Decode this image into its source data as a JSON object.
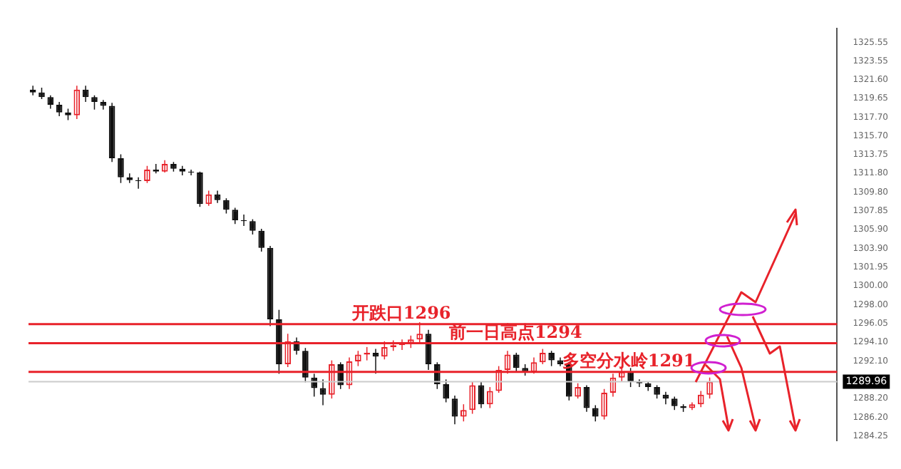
{
  "chart_data": {
    "type": "candlestick",
    "categories": [
      null,
      null,
      null,
      null,
      null,
      null,
      null,
      null,
      null,
      null,
      null,
      null,
      null,
      null,
      null,
      null,
      null,
      null,
      null,
      null,
      null,
      null,
      null,
      null,
      null,
      null,
      null,
      null,
      null,
      null,
      null,
      null,
      null,
      null,
      null,
      null,
      null,
      null,
      null,
      null,
      null,
      null,
      null,
      null,
      null,
      null,
      null,
      null,
      null,
      null,
      null,
      null,
      null,
      null,
      null,
      null,
      null,
      null,
      null,
      null,
      null,
      null,
      null,
      null,
      null,
      null,
      null,
      null,
      null,
      null,
      null,
      null,
      null,
      null,
      null,
      null,
      null,
      null,
      null,
      null,
      null,
      null,
      null,
      null,
      null,
      null,
      null,
      null,
      null,
      null,
      null,
      null
    ],
    "ohlc": [
      [
        1320.6,
        1321,
        1320,
        1320.3
      ],
      [
        1320.3,
        1320.8,
        1319.6,
        1319.8
      ],
      [
        1319.8,
        1320,
        1318.6,
        1319.0
      ],
      [
        1319.0,
        1319.3,
        1317.8,
        1318.2
      ],
      [
        1318.2,
        1318.6,
        1317.4,
        1317.9
      ],
      [
        1317.9,
        1321.0,
        1317.5,
        1320.6
      ],
      [
        1320.6,
        1321,
        1319.3,
        1319.8
      ],
      [
        1319.8,
        1320,
        1318.5,
        1319.3
      ],
      [
        1319.3,
        1319.5,
        1318.5,
        1318.9
      ],
      [
        1318.9,
        1319.2,
        1313.0,
        1313.4
      ],
      [
        1313.4,
        1313.8,
        1310.8,
        1311.4
      ],
      [
        1311.4,
        1311.8,
        1310.8,
        1311.1
      ],
      [
        1311.1,
        1311.4,
        1310.2,
        1311.0
      ],
      [
        1311.0,
        1312.6,
        1310.8,
        1312.2
      ],
      [
        1312.2,
        1312.8,
        1311.8,
        1312.0
      ],
      [
        1312.0,
        1313.2,
        1311.9,
        1312.8
      ],
      [
        1312.8,
        1313.0,
        1312.0,
        1312.3
      ],
      [
        1312.3,
        1312.6,
        1311.6,
        1312.0
      ],
      [
        1312.0,
        1312.2,
        1311.6,
        1311.9
      ],
      [
        1311.9,
        1312.0,
        1308.3,
        1308.6
      ],
      [
        1308.6,
        1310.0,
        1308.4,
        1309.6
      ],
      [
        1309.6,
        1310.0,
        1308.7,
        1309.0
      ],
      [
        1309.0,
        1309.2,
        1307.6,
        1308.0
      ],
      [
        1308.0,
        1308.2,
        1306.5,
        1306.9
      ],
      [
        1306.9,
        1307.5,
        1306.3,
        1306.8
      ],
      [
        1306.8,
        1307.0,
        1305.4,
        1305.8
      ],
      [
        1305.8,
        1306.0,
        1303.6,
        1304.0
      ],
      [
        1304.0,
        1304.2,
        1295.8,
        1296.5
      ],
      [
        1296.5,
        1297.5,
        1290.8,
        1291.8
      ],
      [
        1291.8,
        1295.0,
        1291.5,
        1294.2
      ],
      [
        1294.2,
        1294.6,
        1292.8,
        1293.2
      ],
      [
        1293.2,
        1293.5,
        1289.9,
        1290.4
      ],
      [
        1290.4,
        1290.8,
        1288.4,
        1289.3
      ],
      [
        1289.3,
        1290.2,
        1287.5,
        1288.6
      ],
      [
        1288.6,
        1292.2,
        1288.2,
        1291.8
      ],
      [
        1291.8,
        1292.0,
        1289.2,
        1289.6
      ],
      [
        1289.6,
        1292.5,
        1289.2,
        1292.1
      ],
      [
        1292.1,
        1293.2,
        1291.6,
        1292.8
      ],
      [
        1292.8,
        1293.6,
        1292.2,
        1293.0
      ],
      [
        1293.0,
        1293.4,
        1290.8,
        1292.6
      ],
      [
        1292.6,
        1294.2,
        1292.3,
        1293.6
      ],
      [
        1293.6,
        1294.3,
        1293.2,
        1293.8
      ],
      [
        1293.8,
        1294.4,
        1293.3,
        1294.0
      ],
      [
        1294.0,
        1294.8,
        1293.5,
        1294.4
      ],
      [
        1294.4,
        1296.2,
        1294.0,
        1295.0
      ],
      [
        1295.0,
        1295.4,
        1291.2,
        1291.8
      ],
      [
        1291.8,
        1292.0,
        1289.2,
        1289.7
      ],
      [
        1289.7,
        1290.2,
        1287.8,
        1288.2
      ],
      [
        1288.2,
        1288.5,
        1285.5,
        1286.3
      ],
      [
        1286.3,
        1287.6,
        1285.8,
        1287.0
      ],
      [
        1287.0,
        1290.0,
        1286.6,
        1289.6
      ],
      [
        1289.6,
        1290.0,
        1287.2,
        1287.6
      ],
      [
        1287.6,
        1289.4,
        1287.2,
        1289.0
      ],
      [
        1289.0,
        1291.6,
        1288.8,
        1291.2
      ],
      [
        1291.2,
        1293.2,
        1290.8,
        1292.8
      ],
      [
        1292.8,
        1293.0,
        1291.0,
        1291.4
      ],
      [
        1291.4,
        1291.8,
        1290.6,
        1291.0
      ],
      [
        1291.0,
        1292.5,
        1290.8,
        1292.0
      ],
      [
        1292.0,
        1293.4,
        1291.8,
        1293.0
      ],
      [
        1293.0,
        1293.2,
        1291.6,
        1292.2
      ],
      [
        1292.2,
        1292.5,
        1291.6,
        1291.8
      ],
      [
        1291.8,
        1292.0,
        1288.0,
        1288.4
      ],
      [
        1288.4,
        1289.8,
        1288.2,
        1289.4
      ],
      [
        1289.4,
        1289.6,
        1286.8,
        1287.2
      ],
      [
        1287.2,
        1287.5,
        1285.8,
        1286.3
      ],
      [
        1286.3,
        1289.2,
        1286.0,
        1288.8
      ],
      [
        1288.8,
        1290.8,
        1288.4,
        1290.4
      ],
      [
        1290.4,
        1291.6,
        1290.0,
        1291.0
      ],
      [
        1291.0,
        1291.4,
        1289.4,
        1290.0
      ],
      [
        1290.0,
        1290.2,
        1289.4,
        1289.8
      ],
      [
        1289.8,
        1290.0,
        1289.0,
        1289.4
      ],
      [
        1289.4,
        1289.6,
        1288.2,
        1288.6
      ],
      [
        1288.6,
        1288.9,
        1287.6,
        1288.2
      ],
      [
        1288.2,
        1288.4,
        1287.0,
        1287.4
      ],
      [
        1287.4,
        1287.6,
        1286.8,
        1287.2
      ],
      [
        1287.2,
        1287.8,
        1287.0,
        1287.6
      ],
      [
        1287.6,
        1289.0,
        1287.3,
        1288.6
      ],
      [
        1288.6,
        1290.4,
        1288.2,
        1289.96
      ],
      null,
      null,
      null,
      null,
      null,
      null,
      null,
      null,
      null,
      null,
      null,
      null,
      null,
      null
    ],
    "ylim": [
      1283.8,
      1327
    ],
    "yticks": [
      {
        "value": 1284.25,
        "label": "1284.25"
      },
      {
        "value": 1286.2,
        "label": "1286.20"
      },
      {
        "value": 1288.2,
        "label": "1288.20"
      },
      {
        "value": 1292.1,
        "label": "1292.10"
      },
      {
        "value": 1294.1,
        "label": "1294.10"
      },
      1296.05,
      {
        "value": 1298,
        "label": "1298.00"
      },
      {
        "value": 1300,
        "label": "1300.00"
      },
      1301.95,
      {
        "value": 1303.9,
        "label": "1303.90"
      },
      {
        "value": 1305.9,
        "label": "1305.90"
      },
      1307.85,
      {
        "value": 1309.8,
        "label": "1309.80"
      },
      {
        "value": 1311.8,
        "label": "1311.80"
      },
      1313.75,
      {
        "value": 1315.7,
        "label": "1315.70"
      },
      {
        "value": 1317.7,
        "label": "1317.70"
      },
      1319.65,
      {
        "value": 1321.6,
        "label": "1321.60"
      },
      1323.55,
      1325.55
    ],
    "ref_lines": [
      {
        "axis": "y",
        "value": 1296,
        "label": "开跌口1296",
        "color": "#e8222a"
      },
      {
        "axis": "y",
        "value": 1294,
        "label": "前一日高点1294",
        "color": "#e8222a"
      },
      {
        "axis": "y",
        "value": 1291,
        "label": "多空分水岭1291",
        "color": "#e8222a"
      },
      {
        "axis": "y",
        "value": 1289.96,
        "label": "1289.96",
        "color": "#cccccc"
      }
    ],
    "grid": false,
    "legend": false,
    "tick_labels": "y"
  }
}
